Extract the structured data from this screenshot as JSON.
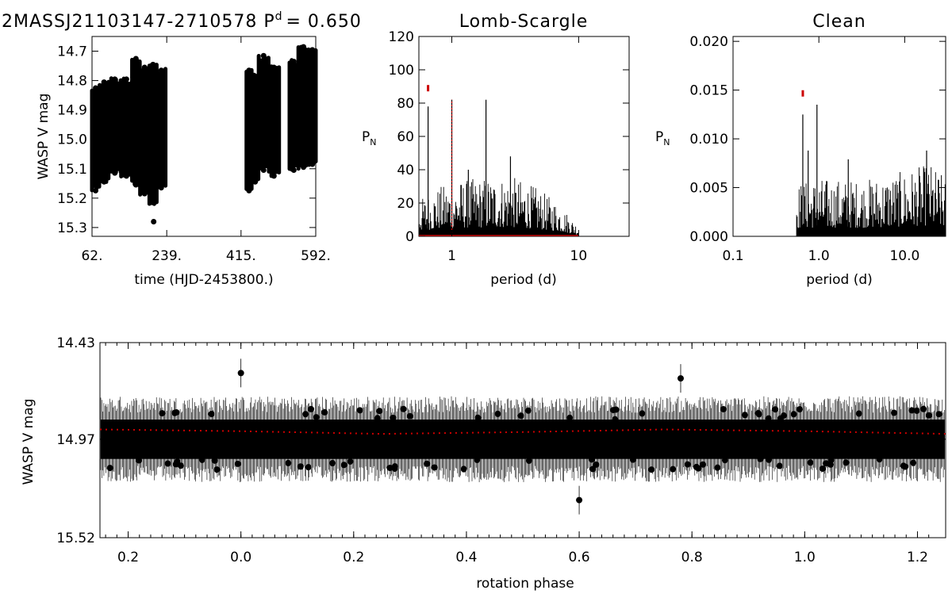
{
  "figure": {
    "star_title": "2MASSJ21103147-2710578 P",
    "period_sup": "d",
    "period_value": "= 0.650",
    "colors": {
      "data": "#000000",
      "highlight": "#cc0000"
    }
  },
  "chart_data": [
    {
      "id": "lightcurve",
      "type": "scatter",
      "title": "",
      "xlabel": "time (HJD-2453800.)",
      "ylabel": "WASP V mag",
      "xlim": [
        62,
        592
      ],
      "ylim": [
        15.33,
        14.65
      ],
      "y_inverted": true,
      "x_ticks": [
        "62.",
        "239.",
        "415.",
        "592."
      ],
      "x_tick_values": [
        62,
        239,
        415,
        592
      ],
      "y_ticks": [
        "14.7",
        "14.8",
        "14.9",
        "15.0",
        "15.1",
        "15.2",
        "15.3"
      ],
      "y_tick_values": [
        14.7,
        14.8,
        14.9,
        15.0,
        15.1,
        15.2,
        15.3
      ],
      "segments": [
        {
          "x_start": 62,
          "x_end": 79,
          "top": 14.82,
          "bottom": 15.18
        },
        {
          "x_start": 80,
          "x_end": 101,
          "top": 14.8,
          "bottom": 15.15
        },
        {
          "x_start": 102,
          "x_end": 130,
          "top": 14.79,
          "bottom": 15.12
        },
        {
          "x_start": 131,
          "x_end": 156,
          "top": 14.79,
          "bottom": 15.13
        },
        {
          "x_start": 157,
          "x_end": 175,
          "top": 14.72,
          "bottom": 15.16
        },
        {
          "x_start": 176,
          "x_end": 197,
          "top": 14.75,
          "bottom": 15.19
        },
        {
          "x_start": 198,
          "x_end": 215,
          "top": 14.74,
          "bottom": 15.22
        },
        {
          "x_start": 216,
          "x_end": 236,
          "top": 14.76,
          "bottom": 15.17
        },
        {
          "x_start": 428,
          "x_end": 440,
          "top": 14.76,
          "bottom": 15.18
        },
        {
          "x_start": 441,
          "x_end": 456,
          "top": 14.78,
          "bottom": 15.15
        },
        {
          "x_start": 457,
          "x_end": 480,
          "top": 14.71,
          "bottom": 15.11
        },
        {
          "x_start": 481,
          "x_end": 505,
          "top": 14.75,
          "bottom": 15.13
        },
        {
          "x_start": 530,
          "x_end": 550,
          "top": 14.73,
          "bottom": 15.11
        },
        {
          "x_start": 551,
          "x_end": 575,
          "top": 14.68,
          "bottom": 15.1
        },
        {
          "x_start": 576,
          "x_end": 592,
          "top": 14.69,
          "bottom": 15.09
        }
      ],
      "outliers": [
        {
          "x": 208,
          "y": 15.28
        }
      ]
    },
    {
      "id": "lomb-scargle",
      "type": "line",
      "title": "Lomb-Scargle",
      "xlabel": "period (d)",
      "ylabel": "P",
      "ylabel_sub": "N",
      "x_scale": "log",
      "xlim": [
        0.55,
        25
      ],
      "ylim": [
        0,
        120
      ],
      "x_ticks": [
        "1",
        "10"
      ],
      "x_tick_values": [
        1,
        10
      ],
      "y_ticks": [
        "0",
        "20",
        "40",
        "60",
        "80",
        "100",
        "120"
      ],
      "y_tick_values": [
        0,
        20,
        40,
        60,
        80,
        100,
        120
      ],
      "noise_range_period": [
        0.55,
        10
      ],
      "noise_envelope": [
        {
          "period": 0.55,
          "power": 22
        },
        {
          "period": 0.8,
          "power": 30
        },
        {
          "period": 1.2,
          "power": 34
        },
        {
          "period": 2.0,
          "power": 36
        },
        {
          "period": 3.0,
          "power": 36
        },
        {
          "period": 4.5,
          "power": 30
        },
        {
          "period": 7.0,
          "power": 20
        },
        {
          "period": 10,
          "power": 6
        }
      ],
      "peaks": [
        {
          "period": 0.65,
          "power": 78
        },
        {
          "period": 1.0,
          "power": 82
        },
        {
          "period": 1.86,
          "power": 82
        },
        {
          "period": 2.9,
          "power": 48
        },
        {
          "period": 1.35,
          "power": 40
        }
      ],
      "marker": {
        "period": 0.65,
        "power": 88
      },
      "window_peak": {
        "period": 1.0,
        "power": 82
      }
    },
    {
      "id": "clean",
      "type": "line",
      "title": "Clean",
      "xlabel": "period (d)",
      "ylabel": "P",
      "ylabel_sub": "N",
      "x_scale": "log",
      "xlim": [
        0.1,
        30
      ],
      "ylim": [
        0,
        0.0205
      ],
      "x_ticks": [
        "0.1",
        "1.0",
        "10.0"
      ],
      "x_tick_values": [
        0.1,
        1,
        10
      ],
      "y_ticks": [
        "0.000",
        "0.005",
        "0.010",
        "0.015",
        "0.020"
      ],
      "y_tick_values": [
        0,
        0.005,
        0.01,
        0.015,
        0.02
      ],
      "noise_range_period": [
        0.55,
        30
      ],
      "noise_envelope": [
        {
          "period": 0.55,
          "power": 0.0055
        },
        {
          "period": 1.0,
          "power": 0.006
        },
        {
          "period": 3.0,
          "power": 0.0058
        },
        {
          "period": 8.0,
          "power": 0.0065
        },
        {
          "period": 20,
          "power": 0.0075
        },
        {
          "period": 30,
          "power": 0.006
        }
      ],
      "peaks": [
        {
          "period": 0.65,
          "power": 0.0125
        },
        {
          "period": 0.75,
          "power": 0.0088
        },
        {
          "period": 0.95,
          "power": 0.0135
        },
        {
          "period": 2.2,
          "power": 0.0079
        },
        {
          "period": 18.0,
          "power": 0.0088
        }
      ],
      "marker": {
        "period": 0.65,
        "power": 0.0145
      }
    },
    {
      "id": "phased",
      "type": "scatter",
      "title": "",
      "xlabel": "rotation phase",
      "ylabel": "WASP V mag",
      "xlim": [
        -0.25,
        1.25
      ],
      "ylim": [
        15.52,
        14.43
      ],
      "y_inverted": true,
      "x_ticks": [
        "0.2",
        "0.0",
        "0.2",
        "0.4",
        "0.6",
        "0.8",
        "1.0",
        "1.2"
      ],
      "x_tick_values": [
        -0.2,
        0.0,
        0.2,
        0.4,
        0.6,
        0.8,
        1.0,
        1.2
      ],
      "y_ticks": [
        "14.43",
        "14.97",
        "15.52"
      ],
      "y_tick_values": [
        14.43,
        14.97,
        15.52
      ],
      "band": {
        "center": 14.97,
        "dense_half_width": 0.11,
        "error_half_width": 0.24
      },
      "model": [
        {
          "phase": -0.25,
          "mag": 14.915
        },
        {
          "phase": 0.0,
          "mag": 14.925
        },
        {
          "phase": 0.25,
          "mag": 14.94
        },
        {
          "phase": 0.5,
          "mag": 14.93
        },
        {
          "phase": 0.75,
          "mag": 14.915
        },
        {
          "phase": 1.0,
          "mag": 14.925
        },
        {
          "phase": 1.25,
          "mag": 14.94
        }
      ],
      "outliers": [
        {
          "phase": 0.6,
          "mag": 15.31
        },
        {
          "phase": 0.0,
          "mag": 14.6
        },
        {
          "phase": 0.78,
          "mag": 14.63
        }
      ]
    }
  ]
}
